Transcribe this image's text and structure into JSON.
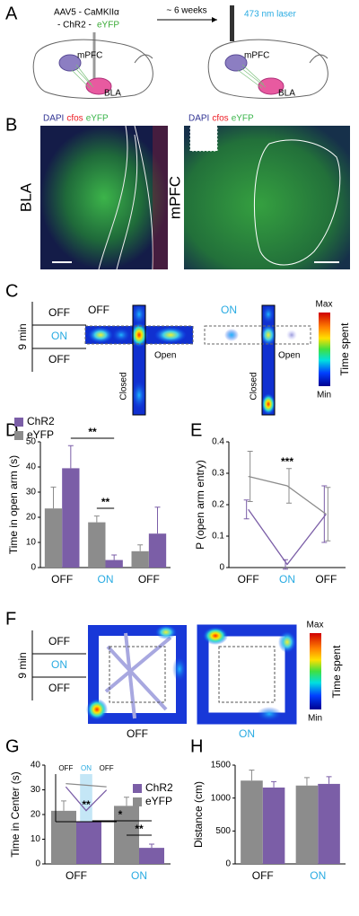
{
  "panel_labels": [
    "A",
    "B",
    "C",
    "D",
    "E",
    "F",
    "G",
    "H"
  ],
  "panel_a": {
    "construct": "AAV5 - CaMKIIα",
    "opsin": "- ChR2 -",
    "reporter": "eYFP",
    "reporter_color": "#3aaa35",
    "interval": "~ 6 weeks",
    "laser": "473 nm laser",
    "laser_color": "#29abe2",
    "regions": [
      "mPFC",
      "BLA",
      "mPFC",
      "BLA"
    ]
  },
  "panel_b": {
    "stains": [
      "DAPI",
      "cfos",
      "eYFP"
    ],
    "stain_colors": [
      "#2e3192",
      "#ed1c24",
      "#39b54a"
    ],
    "regions": [
      "BLA",
      "mPFC"
    ]
  },
  "panel_c": {
    "protocol": [
      "OFF",
      "ON",
      "OFF"
    ],
    "protocol_colors": [
      "#000000",
      "#29abe2",
      "#000000"
    ],
    "duration": "9 min",
    "conditions": [
      "OFF",
      "ON"
    ],
    "condition_colors": [
      "#000000",
      "#29abe2"
    ],
    "arms": [
      "Closed",
      "Open"
    ],
    "scale": [
      "Max",
      "Min"
    ],
    "scale_label": "Time spent"
  },
  "panel_f": {
    "protocol": [
      "OFF",
      "ON",
      "OFF"
    ],
    "protocol_colors": [
      "#000000",
      "#29abe2",
      "#000000"
    ],
    "duration": "9 min",
    "conditions": [
      "OFF",
      "ON"
    ],
    "condition_colors": [
      "#000000",
      "#29abe2"
    ],
    "scale": [
      "Max",
      "Min"
    ],
    "scale_label": "Time spent"
  },
  "chart_data": [
    {
      "type": "bar",
      "y_label": "Time in open arm (s)",
      "categories": [
        "OFF",
        "ON",
        "OFF"
      ],
      "category_colors": [
        "#000000",
        "#29abe2",
        "#000000"
      ],
      "series": [
        {
          "name": "ChR2",
          "color": "#7b5ea7",
          "values": [
            39.5,
            3,
            13.5
          ],
          "errors": [
            9,
            2,
            10.5
          ]
        },
        {
          "name": "eYFP",
          "color": "#8c8c8c",
          "values": [
            23.5,
            18,
            6.5
          ],
          "errors": [
            8.5,
            2.5,
            2.5
          ]
        }
      ],
      "ylim": [
        0,
        50
      ],
      "yticks": [
        0,
        10,
        20,
        30,
        40,
        50
      ],
      "annotations": [
        "**",
        "**"
      ]
    },
    {
      "type": "line",
      "y_label": "P (open arm entry)",
      "categories": [
        "OFF",
        "ON",
        "OFF"
      ],
      "category_colors": [
        "#000000",
        "#29abe2",
        "#000000"
      ],
      "series": [
        {
          "color": "#7b5ea7",
          "values": [
            0.185,
            0.01,
            0.17
          ],
          "errors": [
            0.03,
            0.015,
            0.09
          ]
        },
        {
          "color": "#8c8c8c",
          "values": [
            0.29,
            0.26,
            0.17
          ],
          "errors": [
            0.08,
            0.055,
            0.085
          ]
        }
      ],
      "ylim": [
        0,
        0.4
      ],
      "yticks": [
        0,
        0.1,
        0.2,
        0.3,
        0.4
      ],
      "annotations": [
        "***"
      ]
    },
    {
      "type": "bar",
      "y_label": "Time in Center (s)",
      "categories": [
        "OFF",
        "ON"
      ],
      "category_colors": [
        "#000000",
        "#29abe2"
      ],
      "series": [
        {
          "name": "ChR2",
          "color": "#7b5ea7",
          "values": [
            17,
            6.5
          ],
          "errors": [
            5.5,
            1.5
          ]
        },
        {
          "name": "eYFP",
          "color": "#8c8c8c",
          "values": [
            21.5,
            23.5
          ],
          "errors": [
            4,
            3.5
          ]
        }
      ],
      "ylim": [
        0,
        40
      ],
      "yticks": [
        0,
        10,
        20,
        30,
        40
      ],
      "annotations": [
        "*",
        "**"
      ]
    },
    {
      "type": "line",
      "categories": [
        "OFF",
        "ON",
        "OFF"
      ],
      "category_colors": [
        "#000000",
        "#29abe2",
        "#000000"
      ],
      "highlight_color": "#c4e6f6",
      "series": [
        {
          "color": "#7b5ea7",
          "values": [
            22,
            7,
            20
          ]
        },
        {
          "color": "#8c8c8c",
          "values": [
            24,
            23,
            22
          ]
        }
      ],
      "ylim": [
        0,
        30
      ],
      "annotations": [
        "**"
      ]
    },
    {
      "type": "bar",
      "y_label": "Distance (cm)",
      "categories": [
        "OFF",
        "ON"
      ],
      "category_colors": [
        "#000000",
        "#29abe2"
      ],
      "series": [
        {
          "name": "ChR2",
          "color": "#7b5ea7",
          "values": [
            1160,
            1215
          ],
          "errors": [
            90,
            110
          ]
        },
        {
          "name": "eYFP",
          "color": "#8c8c8c",
          "values": [
            1265,
            1190
          ],
          "errors": [
            160,
            120
          ]
        }
      ],
      "ylim": [
        0,
        1500
      ],
      "yticks": [
        0,
        500,
        1000,
        1500
      ]
    }
  ]
}
